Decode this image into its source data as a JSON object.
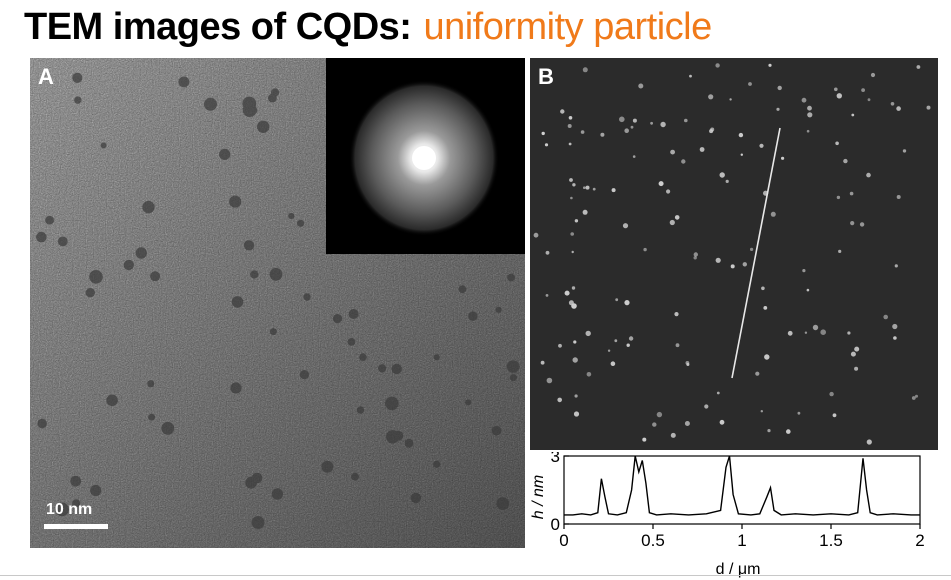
{
  "title": {
    "prefix": "TEM images of CQDs:",
    "highlight": "uniformity particle"
  },
  "panel_a": {
    "label": "A",
    "scale_bar": "10 nm"
  },
  "panel_b": {
    "label": "B"
  },
  "profile_plot": {
    "xlabel": "d / μm",
    "ylabel": "h / nm",
    "x_ticks": [
      "0",
      "0.5",
      "1",
      "1.5",
      "2"
    ],
    "y_ticks": [
      "0",
      "3"
    ]
  },
  "chart_data": {
    "type": "line",
    "title": "",
    "xlabel": "d / μm",
    "ylabel": "h / nm",
    "xlim": [
      0,
      2
    ],
    "ylim": [
      0,
      3
    ],
    "series": [
      {
        "x": [
          0.0,
          0.05,
          0.1,
          0.15,
          0.19,
          0.21,
          0.23,
          0.25,
          0.3,
          0.35,
          0.38,
          0.4,
          0.42,
          0.44,
          0.46,
          0.48,
          0.52,
          0.6,
          0.7,
          0.8,
          0.88,
          0.91,
          0.93,
          0.95,
          0.98,
          1.05,
          1.1,
          1.14,
          1.16,
          1.18,
          1.22,
          1.3,
          1.4,
          1.5,
          1.6,
          1.65,
          1.68,
          1.7,
          1.72,
          1.76,
          1.85,
          1.95,
          2.0
        ],
        "y": [
          0.4,
          0.4,
          0.45,
          0.4,
          0.5,
          2.0,
          1.2,
          0.45,
          0.4,
          0.5,
          1.5,
          3.0,
          2.3,
          2.8,
          1.8,
          0.5,
          0.4,
          0.45,
          0.4,
          0.45,
          0.6,
          2.5,
          3.0,
          1.3,
          0.45,
          0.4,
          0.45,
          1.2,
          1.6,
          0.6,
          0.4,
          0.45,
          0.4,
          0.45,
          0.4,
          0.5,
          2.9,
          1.5,
          0.5,
          0.4,
          0.45,
          0.4,
          0.4
        ]
      }
    ]
  }
}
